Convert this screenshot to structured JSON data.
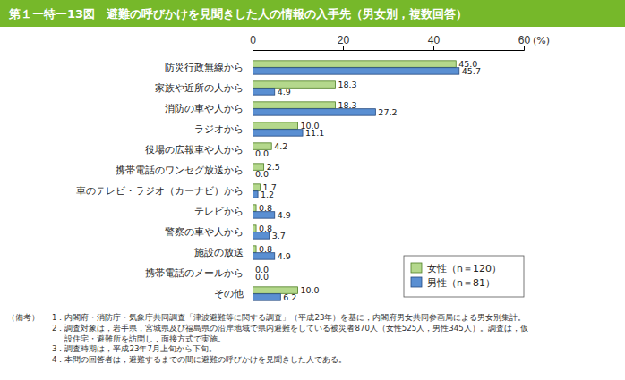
{
  "chart_data": {
    "type": "bar",
    "orientation": "horizontal",
    "title": "第１ー特ー13図　避難の呼びかけを見聞きした人の情報の入手先（男女別，複数回答）",
    "categories": [
      "防災行政無線から",
      "家族や近所の人から",
      "消防の車や人から",
      "ラジオから",
      "役場の広報車や人から",
      "携帯電話のワンセグ放送から",
      "車のテレビ・ラジオ（カーナビ）から",
      "テレビから",
      "警察の車や人から",
      "施設の放送",
      "携帯電話のメールから",
      "その他"
    ],
    "series": [
      {
        "name": "女性（n＝120）",
        "color": "#b4d88c",
        "values": [
          45.0,
          18.3,
          18.3,
          10.0,
          4.2,
          2.5,
          1.7,
          0.8,
          0.8,
          0.8,
          0.0,
          10.0
        ],
        "value_labels": [
          "45.0",
          "18.3",
          "18.3",
          "10.0",
          "4.2",
          "2.5",
          "1.7",
          "0.8",
          "0.8",
          "0.8",
          "0.0",
          "10.0"
        ]
      },
      {
        "name": "男性（n＝81）",
        "color": "#5a8fd2",
        "values": [
          45.7,
          4.9,
          27.2,
          11.1,
          0.0,
          0.0,
          1.2,
          4.9,
          3.7,
          4.9,
          0.0,
          6.2
        ],
        "value_labels": [
          "45.7",
          "4.9",
          "27.2",
          "11.1",
          "0.0",
          "0.0",
          "1.2",
          "4.9",
          "3.7",
          "4.9",
          "0.0",
          "6.2"
        ]
      }
    ],
    "xlim": [
      0,
      60
    ],
    "xticks": [
      0,
      20,
      40,
      60
    ],
    "xlabel": "(%)",
    "grid": false,
    "legend": "lower right",
    "data_labels": true,
    "notes_label": "（備考）",
    "notes": [
      [
        "1．内閣府・消防庁・気象庁共同調査「津波避難等に関する調査」（平成23年）を基に，内閣府男女共同参画局による男女別集計。"
      ],
      [
        "2．調査対象は，岩手県，宮城県及び福島県の沿岸地域で県内避難をしている被災者870人（女性525人，男性345人）。調査は，仮",
        "設住宅・避難所を訪問し，面接方式で実施。"
      ],
      [
        "3．調査時期は，平成23年7月上旬から下旬。"
      ],
      [
        "4．本問の回答者は，避難するまでの間に避難の呼びかけを見聞きした人である。"
      ]
    ]
  }
}
